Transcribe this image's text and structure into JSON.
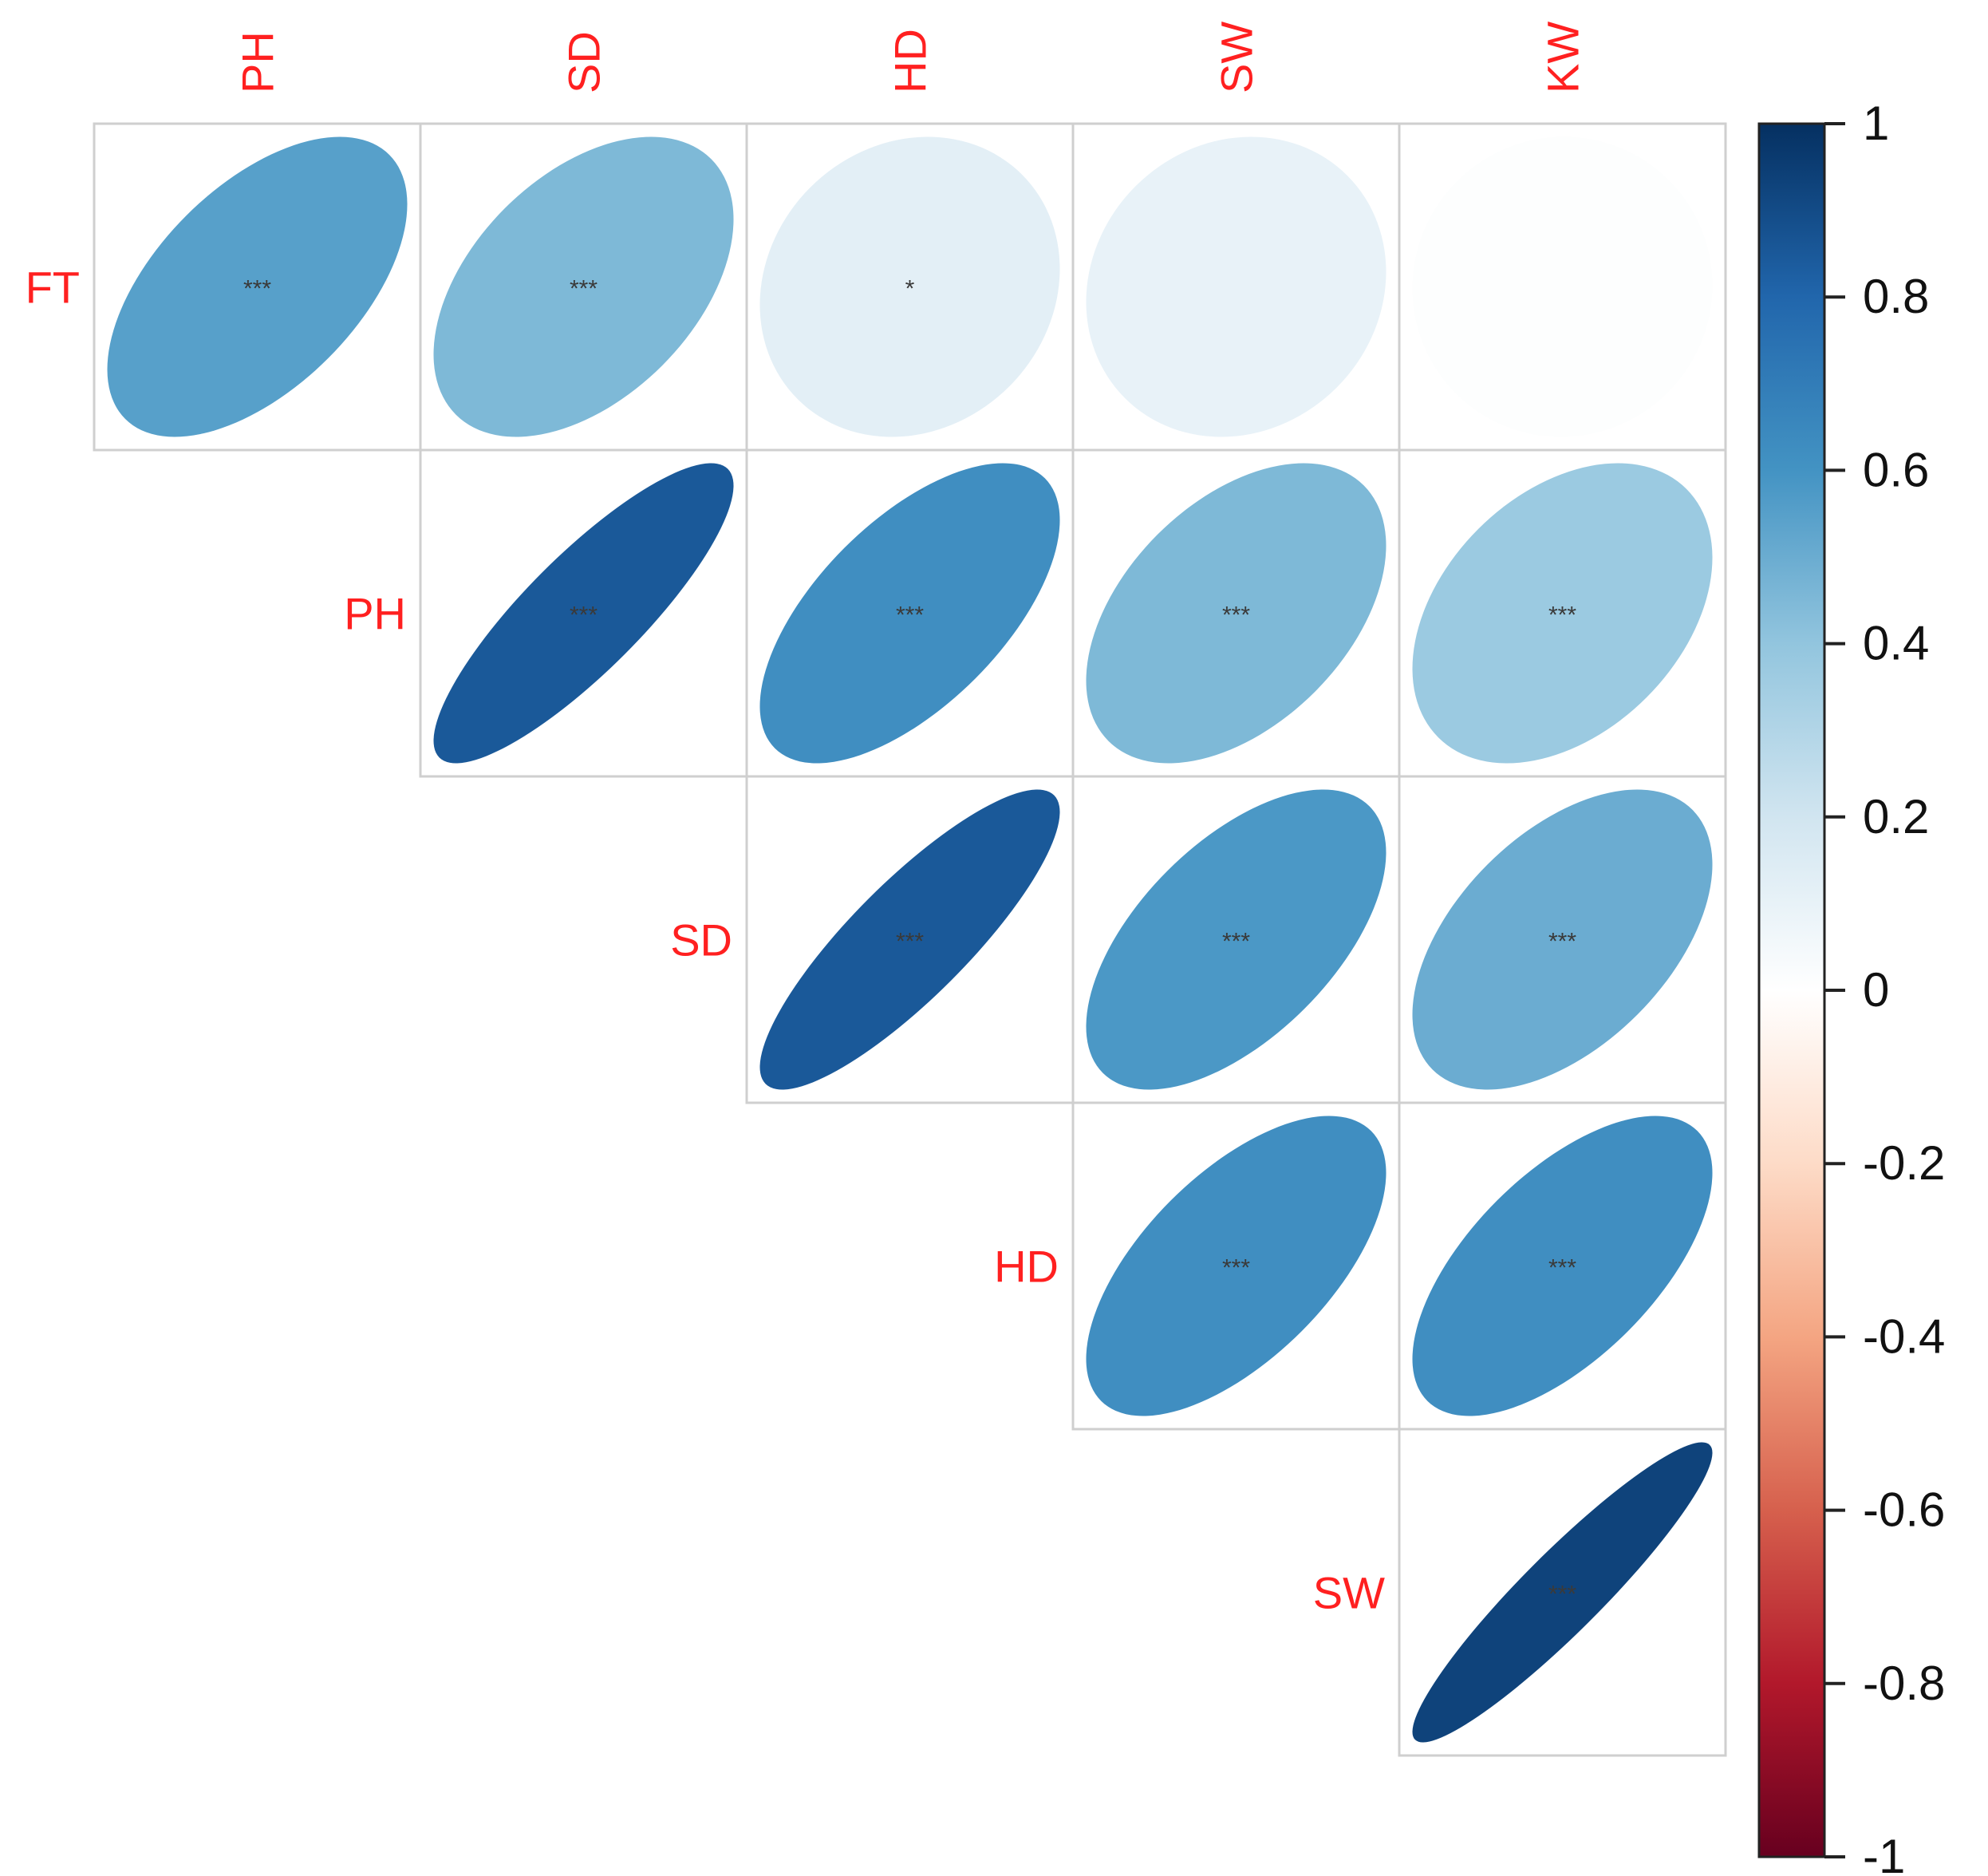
{
  "chart_data": {
    "type": "heatmap",
    "subtype": "correlation-matrix-ellipse-upper",
    "title": "",
    "row_labels": [
      "FT",
      "PH",
      "SD",
      "HD",
      "SW"
    ],
    "col_labels": [
      "PH",
      "SD",
      "HD",
      "SW",
      "KW"
    ],
    "label_color": "#ff2020",
    "cells": [
      {
        "row": "FT",
        "col": "PH",
        "r": 0.55,
        "sig": "***"
      },
      {
        "row": "FT",
        "col": "SD",
        "r": 0.45,
        "sig": "***"
      },
      {
        "row": "FT",
        "col": "HD",
        "r": 0.12,
        "sig": "*"
      },
      {
        "row": "FT",
        "col": "SW",
        "r": 0.1,
        "sig": ""
      },
      {
        "row": "FT",
        "col": "KW",
        "r": 0.01,
        "sig": ""
      },
      {
        "row": "PH",
        "col": "SD",
        "r": 0.85,
        "sig": "***"
      },
      {
        "row": "PH",
        "col": "HD",
        "r": 0.62,
        "sig": "***"
      },
      {
        "row": "PH",
        "col": "SW",
        "r": 0.45,
        "sig": "***"
      },
      {
        "row": "PH",
        "col": "KW",
        "r": 0.37,
        "sig": "***"
      },
      {
        "row": "SD",
        "col": "HD",
        "r": 0.85,
        "sig": "***"
      },
      {
        "row": "SD",
        "col": "SW",
        "r": 0.58,
        "sig": "***"
      },
      {
        "row": "SD",
        "col": "KW",
        "r": 0.5,
        "sig": "***"
      },
      {
        "row": "HD",
        "col": "SW",
        "r": 0.62,
        "sig": "***"
      },
      {
        "row": "HD",
        "col": "KW",
        "r": 0.62,
        "sig": "***"
      },
      {
        "row": "SW",
        "col": "KW",
        "r": 0.93,
        "sig": "***"
      }
    ],
    "colorbar": {
      "range": [
        -1,
        1
      ],
      "tick_labels": [
        "1",
        "0.8",
        "0.6",
        "0.4",
        "0.2",
        "0",
        "-0.2",
        "-0.4",
        "-0.6",
        "-0.8",
        "-1"
      ],
      "tick_values": [
        1,
        0.8,
        0.6,
        0.4,
        0.2,
        0,
        -0.2,
        -0.4,
        -0.6,
        -0.8,
        -1
      ],
      "palette": [
        "#67001f",
        "#b2182b",
        "#d6604d",
        "#f4a582",
        "#fddbc7",
        "#ffffff",
        "#d1e5f0",
        "#92c5de",
        "#4393c3",
        "#2166ac",
        "#053061"
      ]
    },
    "grid": true,
    "legend": "right"
  }
}
